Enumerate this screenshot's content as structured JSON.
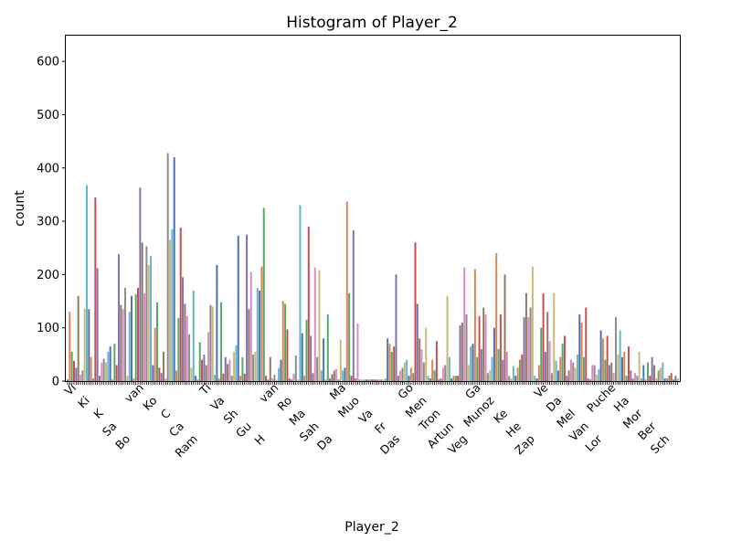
{
  "chart_data": {
    "type": "bar",
    "title": "Histogram of Player_2",
    "xlabel": "Player_2",
    "ylabel": "count",
    "ylim": [
      0,
      650
    ],
    "yticks": [
      0,
      100,
      200,
      300,
      400,
      500,
      600
    ],
    "ytick_labels": [
      "0",
      "100",
      "200",
      "300",
      "400",
      "500",
      "600"
    ],
    "grid": false,
    "legend": "none",
    "palette": [
      "#4c72b0",
      "#dd8452",
      "#55a868",
      "#c44e52",
      "#8172b3",
      "#937860",
      "#da8bc3",
      "#8c8c8c",
      "#ccb974",
      "#64b5cd"
    ],
    "readable_xtick_labels": [
      "Vi",
      "Ki",
      "K",
      "Sa",
      "Bo",
      "van",
      "Ko",
      "C",
      "Ca",
      "Ram",
      "Ti",
      "Va",
      "Sh",
      "Gu",
      "H",
      "van",
      "Ro",
      "Ma",
      "Sah",
      "Da",
      "Ma",
      "Muo",
      "Va",
      "Fr",
      "Das",
      "Go",
      "Men",
      "Tron",
      "Artun",
      "Veg",
      "Ga",
      "Munoz",
      "Ke",
      "He",
      "Zap",
      "Ve",
      "Da",
      "Mel",
      "Van",
      "Lor",
      "Puche",
      "Ha",
      "Mor",
      "Ber",
      "Sch"
    ],
    "heights": [
      3,
      130,
      55,
      38,
      25,
      160,
      12,
      20,
      136,
      368,
      135,
      45,
      5,
      345,
      212,
      10,
      35,
      42,
      35,
      55,
      65,
      3,
      70,
      30,
      238,
      143,
      135,
      175,
      10,
      130,
      160,
      5,
      163,
      175,
      363,
      260,
      165,
      253,
      218,
      235,
      30,
      100,
      148,
      25,
      15,
      55,
      5,
      428,
      265,
      285,
      420,
      20,
      118,
      288,
      195,
      145,
      122,
      88,
      25,
      170,
      10,
      3,
      73,
      40,
      50,
      30,
      92,
      143,
      140,
      12,
      218,
      5,
      148,
      14,
      45,
      32,
      40,
      10,
      55,
      67,
      273,
      10,
      45,
      14,
      275,
      135,
      205,
      50,
      55,
      175,
      170,
      215,
      325,
      10,
      3,
      45,
      5,
      12,
      3,
      25,
      40,
      150,
      145,
      97,
      5,
      3,
      14,
      48,
      3,
      330,
      90,
      10,
      115,
      290,
      85,
      15,
      213,
      45,
      208,
      20,
      80,
      3,
      125,
      5,
      13,
      20,
      23,
      3,
      78,
      20,
      25,
      337,
      165,
      10,
      283,
      5,
      108,
      3,
      3,
      3,
      3,
      3,
      3,
      3,
      3,
      3,
      3,
      3,
      3,
      5,
      80,
      70,
      55,
      65,
      200,
      10,
      20,
      25,
      35,
      40,
      10,
      25,
      15,
      260,
      145,
      80,
      60,
      35,
      100,
      10,
      5,
      40,
      20,
      75,
      3,
      5,
      25,
      30,
      160,
      45,
      5,
      10,
      10,
      10,
      105,
      110,
      213,
      125,
      30,
      65,
      70,
      210,
      45,
      122,
      60,
      138,
      125,
      15,
      20,
      45,
      100,
      240,
      60,
      125,
      40,
      200,
      55,
      10,
      5,
      28,
      10,
      25,
      40,
      50,
      120,
      165,
      120,
      138,
      215,
      10,
      5,
      30,
      100,
      165,
      55,
      130,
      75,
      15,
      165,
      38,
      20,
      45,
      70,
      85,
      10,
      20,
      40,
      35,
      25,
      50,
      125,
      110,
      45,
      138,
      5,
      3,
      30,
      30,
      12,
      22,
      95,
      80,
      40,
      85,
      30,
      35,
      15,
      120,
      50,
      95,
      45,
      55,
      10,
      65,
      20,
      5,
      15,
      10,
      55,
      5,
      30,
      3,
      35,
      10,
      45,
      30,
      5,
      20,
      25,
      35,
      5,
      5,
      10,
      15,
      3,
      10,
      5
    ]
  }
}
